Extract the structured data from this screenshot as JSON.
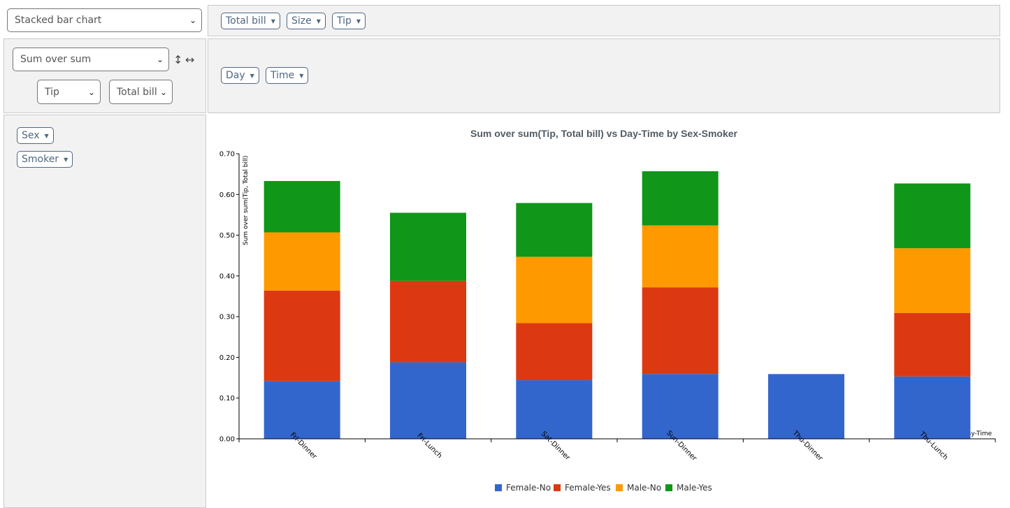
{
  "controls": {
    "renderer": "Stacked bar chart",
    "aggregator": "Sum over sum",
    "sort_rows_icon": "↕",
    "sort_cols_icon": "↔",
    "agg_field1": "Tip",
    "agg_field2": "Total bill"
  },
  "unused_attrs": [
    {
      "label": "Total bill"
    },
    {
      "label": "Size"
    },
    {
      "label": "Tip"
    }
  ],
  "col_attrs": [
    {
      "label": "Day"
    },
    {
      "label": "Time"
    }
  ],
  "row_attrs": [
    {
      "label": "Sex"
    },
    {
      "label": "Smoker"
    }
  ],
  "chart_data": {
    "type": "bar",
    "stacked": true,
    "title": "Sum over sum(Tip, Total bill) vs Day-Time by Sex-Smoker",
    "xlabel": "Day-Time",
    "ylabel": "Sum over sum(Tip, Total bill)",
    "ylim": [
      0,
      0.7
    ],
    "yticks": [
      "0.00",
      "0.10",
      "0.20",
      "0.30",
      "0.40",
      "0.50",
      "0.60",
      "0.70"
    ],
    "categories": [
      "Fri-Dinner",
      "Fri-Lunch",
      "Sat-Dinner",
      "Sun-Dinner",
      "Thu-Dinner",
      "Thu-Lunch"
    ],
    "series": [
      {
        "name": "Female-No",
        "color": "#3366cc",
        "values": [
          0.142,
          0.188,
          0.144,
          0.159,
          0.159,
          0.153
        ]
      },
      {
        "name": "Female-Yes",
        "color": "#dc3912",
        "values": [
          0.222,
          0.2,
          0.14,
          0.213,
          0,
          0.156
        ]
      },
      {
        "name": "Male-No",
        "color": "#ff9900",
        "values": [
          0.143,
          0,
          0.163,
          0.152,
          0,
          0.159
        ]
      },
      {
        "name": "Male-Yes",
        "color": "#109618",
        "values": [
          0.126,
          0.167,
          0.132,
          0.133,
          0,
          0.159
        ]
      }
    ],
    "legend_position": "bottom"
  }
}
